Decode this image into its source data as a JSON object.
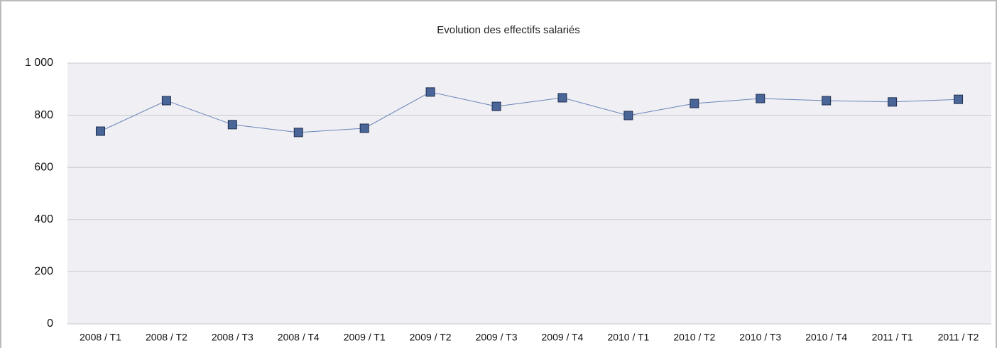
{
  "chart_data": {
    "type": "line",
    "title": "Evolution des effectifs salariés",
    "categories": [
      "2008 / T1",
      "2008 / T2",
      "2008 / T3",
      "2008 / T4",
      "2009 / T1",
      "2009 / T2",
      "2009 / T3",
      "2009 / T4",
      "2010 / T1",
      "2010 / T2",
      "2010 / T3",
      "2010 / T4",
      "2011 / T1",
      "2011 / T2"
    ],
    "values": [
      739,
      856,
      764,
      734,
      750,
      889,
      834,
      867,
      799,
      845,
      864,
      856,
      851,
      861
    ],
    "color": "#4a6698",
    "ylim": [
      0,
      1000
    ],
    "yticks": [
      0,
      200,
      400,
      600,
      800,
      {
        "value": 1000,
        "label": "1 000"
      }
    ],
    "grid": true
  }
}
